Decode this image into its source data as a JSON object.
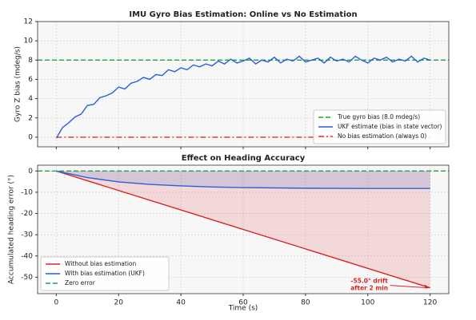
{
  "chart_data": [
    {
      "type": "line",
      "title": "IMU Gyro Bias Estimation: Online vs No Estimation",
      "ylabel": "Gyro Z bias (mdeg/s)",
      "xlim": [
        -6,
        126
      ],
      "ylim": [
        -1,
        12
      ],
      "xticks": [
        0,
        20,
        40,
        60,
        80,
        100,
        120
      ],
      "yticks": [
        0,
        2,
        4,
        6,
        8,
        10,
        12
      ],
      "grid": true,
      "legend": "lower right",
      "series": [
        {
          "name": "True gyro bias (8.0 mdeg/s)",
          "color": "#22a045",
          "style": "dashed",
          "x": [
            -6,
            126
          ],
          "values": [
            8,
            8
          ]
        },
        {
          "name": "UKF estimate (bias in state vector)",
          "color": "#2b5fd9",
          "style": "solid",
          "x": [
            0,
            2,
            4,
            6,
            8,
            10,
            12,
            14,
            16,
            18,
            20,
            22,
            24,
            26,
            28,
            30,
            32,
            34,
            36,
            38,
            40,
            42,
            44,
            46,
            48,
            50,
            52,
            54,
            56,
            58,
            60,
            62,
            64,
            66,
            68,
            70,
            72,
            74,
            76,
            78,
            80,
            82,
            84,
            86,
            88,
            90,
            92,
            94,
            96,
            98,
            100,
            102,
            104,
            106,
            108,
            110,
            112,
            114,
            116,
            118,
            120
          ],
          "values": [
            -0.1,
            1.0,
            1.5,
            2.1,
            2.4,
            3.3,
            3.4,
            4.1,
            4.3,
            4.6,
            5.2,
            5.0,
            5.6,
            5.8,
            6.2,
            6.0,
            6.5,
            6.4,
            7.0,
            6.8,
            7.2,
            7.0,
            7.5,
            7.3,
            7.6,
            7.4,
            7.9,
            7.6,
            8.1,
            7.7,
            7.9,
            8.2,
            7.6,
            8.0,
            7.8,
            8.3,
            7.7,
            8.1,
            7.9,
            8.4,
            7.8,
            8.0,
            8.2,
            7.7,
            8.3,
            7.9,
            8.1,
            7.8,
            8.4,
            8.0,
            7.7,
            8.2,
            8.0,
            8.3,
            7.8,
            8.1,
            7.9,
            8.4,
            7.8,
            8.2,
            8.0
          ]
        },
        {
          "name": "No bias estimation (always 0)",
          "color": "#e03030",
          "style": "dashdot",
          "x": [
            0,
            120
          ],
          "values": [
            0,
            0
          ]
        }
      ]
    },
    {
      "type": "line",
      "title": "Effect on Heading Accuracy",
      "xlabel": "Time (s)",
      "ylabel": "Accumulated heading error (°)",
      "xlim": [
        -6,
        126
      ],
      "ylim": [
        -57.75,
        2.75
      ],
      "xticks": [
        0,
        20,
        40,
        60,
        80,
        100,
        120
      ],
      "yticks": [
        -50,
        -40,
        -30,
        -20,
        -10,
        0
      ],
      "grid": true,
      "legend": "lower left",
      "series": [
        {
          "name": "Without bias estimation",
          "color": "#d62728",
          "style": "solid",
          "fill": true,
          "x": [
            0,
            120
          ],
          "values": [
            0,
            -55
          ]
        },
        {
          "name": "With bias estimation (UKF)",
          "color": "#2b5fd9",
          "style": "solid",
          "fill": true,
          "x": [
            0,
            10,
            20,
            30,
            40,
            50,
            60,
            80,
            100,
            120
          ],
          "values": [
            0,
            -3.1,
            -5.1,
            -6.3,
            -7.0,
            -7.5,
            -7.8,
            -8.1,
            -8.2,
            -8.2
          ]
        },
        {
          "name": "Zero error",
          "color": "#22a045",
          "style": "dashed",
          "x": [
            -6,
            126
          ],
          "values": [
            0,
            0
          ]
        }
      ],
      "annotation": {
        "lines": [
          "-55.0° drift",
          "after 2 min"
        ],
        "x": 120,
        "y": -55,
        "color": "#d62728"
      }
    }
  ]
}
